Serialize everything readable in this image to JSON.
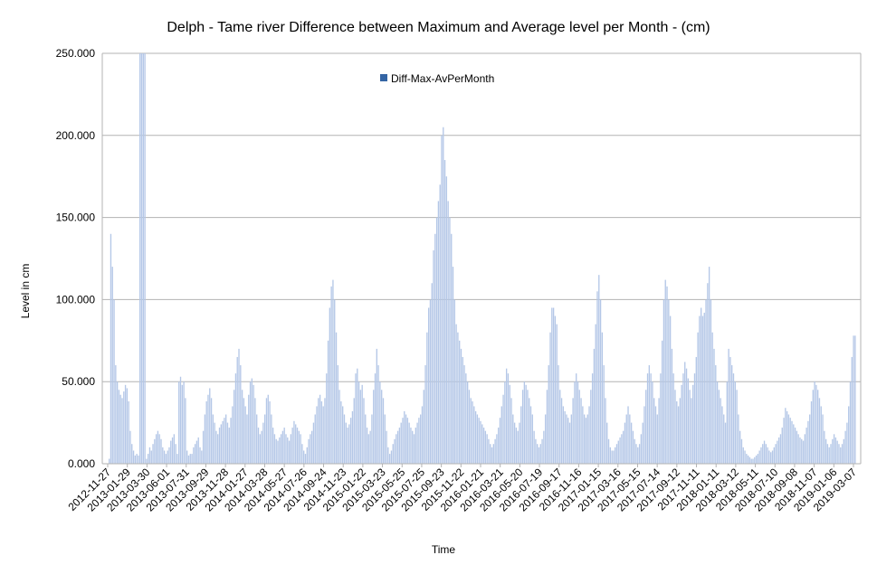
{
  "chart_data": {
    "type": "bar",
    "title": "Delph - Tame river Difference between Maximum and Average level per Month  - (cm)",
    "xlabel": "Time",
    "ylabel": "Level in cm",
    "ylim": [
      0,
      250
    ],
    "y_ticks": [
      "0.000",
      "50.000",
      "100.000",
      "150.000",
      "200.000",
      "250.000"
    ],
    "y_tick_values": [
      0,
      50,
      100,
      150,
      200,
      250
    ],
    "grid": true,
    "legend_position": "top-center",
    "series": [
      {
        "name": "Diff-Max-AvPerMonth",
        "color": "#b4c7e7",
        "values": [
          3,
          140,
          120,
          100,
          60,
          50,
          45,
          42,
          40,
          44,
          48,
          46,
          38,
          20,
          12,
          8,
          5,
          6,
          5,
          250,
          250,
          250,
          250,
          3,
          6,
          10,
          8,
          12,
          15,
          18,
          20,
          18,
          15,
          10,
          8,
          6,
          8,
          10,
          14,
          16,
          18,
          12,
          6,
          50,
          53,
          48,
          50,
          40,
          8,
          5,
          6,
          6,
          10,
          12,
          14,
          16,
          10,
          8,
          20,
          30,
          38,
          42,
          46,
          40,
          30,
          25,
          20,
          18,
          22,
          24,
          26,
          28,
          30,
          25,
          22,
          28,
          35,
          45,
          55,
          65,
          70,
          60,
          45,
          40,
          35,
          30,
          42,
          50,
          52,
          48,
          40,
          30,
          22,
          18,
          20,
          25,
          30,
          40,
          42,
          38,
          30,
          22,
          18,
          15,
          14,
          16,
          18,
          20,
          22,
          18,
          16,
          14,
          18,
          22,
          26,
          24,
          22,
          20,
          18,
          12,
          8,
          6,
          10,
          15,
          18,
          20,
          25,
          30,
          35,
          40,
          42,
          38,
          35,
          40,
          55,
          75,
          95,
          108,
          112,
          100,
          80,
          60,
          45,
          38,
          35,
          30,
          25,
          22,
          24,
          28,
          32,
          40,
          55,
          58,
          50,
          45,
          48,
          40,
          30,
          22,
          18,
          20,
          30,
          45,
          55,
          70,
          60,
          50,
          45,
          40,
          30,
          20,
          10,
          6,
          8,
          12,
          15,
          18,
          20,
          22,
          25,
          28,
          32,
          30,
          28,
          25,
          22,
          20,
          18,
          22,
          25,
          28,
          30,
          35,
          45,
          60,
          80,
          95,
          100,
          110,
          130,
          140,
          150,
          160,
          170,
          200,
          205,
          185,
          175,
          160,
          150,
          140,
          120,
          100,
          85,
          80,
          75,
          70,
          65,
          60,
          55,
          50,
          45,
          40,
          38,
          35,
          32,
          30,
          28,
          26,
          24,
          22,
          20,
          18,
          15,
          12,
          10,
          12,
          15,
          18,
          22,
          28,
          35,
          42,
          50,
          58,
          55,
          48,
          40,
          30,
          25,
          22,
          20,
          25,
          35,
          45,
          50,
          48,
          45,
          40,
          35,
          30,
          20,
          15,
          12,
          10,
          12,
          15,
          20,
          30,
          45,
          60,
          80,
          95,
          95,
          90,
          85,
          60,
          45,
          40,
          35,
          32,
          30,
          28,
          25,
          30,
          40,
          50,
          55,
          50,
          45,
          40,
          35,
          30,
          28,
          30,
          35,
          45,
          55,
          70,
          85,
          105,
          115,
          100,
          80,
          60,
          40,
          25,
          15,
          10,
          8,
          8,
          10,
          12,
          14,
          16,
          18,
          20,
          25,
          30,
          35,
          30,
          25,
          20,
          15,
          12,
          10,
          12,
          18,
          25,
          35,
          45,
          55,
          60,
          55,
          50,
          40,
          35,
          30,
          40,
          55,
          75,
          100,
          112,
          108,
          100,
          90,
          70,
          55,
          45,
          38,
          35,
          40,
          48,
          55,
          62,
          58,
          52,
          45,
          40,
          48,
          55,
          65,
          80,
          90,
          95,
          90,
          92,
          100,
          110,
          120,
          100,
          80,
          70,
          60,
          50,
          45,
          40,
          35,
          30,
          25,
          50,
          70,
          65,
          60,
          55,
          50,
          45,
          30,
          20,
          15,
          10,
          8,
          6,
          5,
          4,
          3,
          3,
          4,
          5,
          6,
          8,
          10,
          12,
          14,
          12,
          10,
          8,
          7,
          8,
          10,
          12,
          14,
          16,
          18,
          22,
          28,
          34,
          32,
          30,
          28,
          26,
          24,
          22,
          20,
          18,
          16,
          15,
          14,
          18,
          22,
          26,
          30,
          38,
          45,
          50,
          48,
          45,
          40,
          35,
          30,
          20,
          15,
          12,
          10,
          12,
          15,
          18,
          16,
          14,
          12,
          10,
          12,
          15,
          20,
          25,
          35,
          50,
          65,
          78,
          78
        ]
      }
    ],
    "x_tick_labels": [
      "2012-11-27",
      "2013-01-29",
      "2013-03-30",
      "2013-06-01",
      "2013-07-31",
      "2013-09-29",
      "2013-11-28",
      "2014-01-27",
      "2014-03-28",
      "2014-05-27",
      "2014-07-26",
      "2014-09-24",
      "2014-11-23",
      "2015-01-22",
      "2015-03-23",
      "2015-05-25",
      "2015-07-25",
      "2015-09-23",
      "2015-11-22",
      "2016-01-21",
      "2016-03-21",
      "2016-05-20",
      "2016-07-19",
      "2016-09-17",
      "2016-11-16",
      "2017-01-15",
      "2017-03-16",
      "2017-05-15",
      "2017-07-14",
      "2017-09-12",
      "2017-11-11",
      "2018-01-11",
      "2018-03-12",
      "2018-05-11",
      "2018-07-10",
      "2018-09-08",
      "2018-11-07",
      "2019-01-06",
      "2019-03-07"
    ]
  }
}
